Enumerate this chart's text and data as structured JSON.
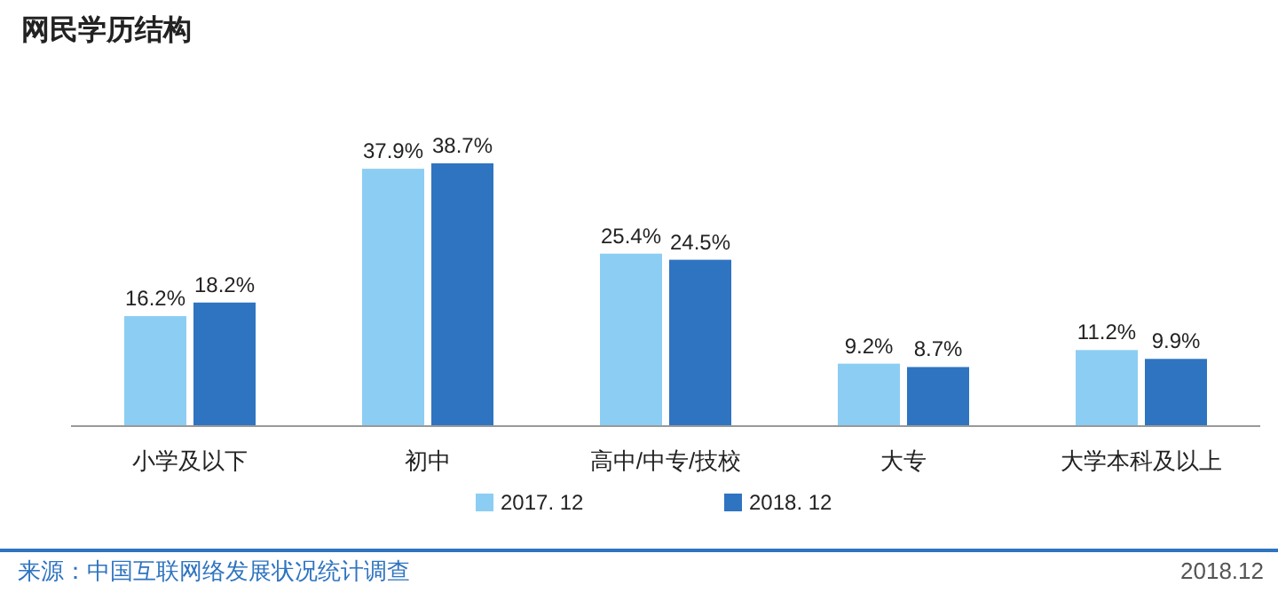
{
  "chart_data": {
    "type": "bar",
    "title": "网民学历结构",
    "categories": [
      "小学及以下",
      "初中",
      "高中/中专/技校",
      "大专",
      "大学本科及以上"
    ],
    "series": [
      {
        "name": "2017. 12",
        "color": "#8ccdf3",
        "values": [
          16.2,
          37.9,
          25.4,
          9.2,
          11.2
        ],
        "value_labels": [
          "16.2%",
          "37.9%",
          "25.4%",
          "9.2%",
          "11.2%"
        ]
      },
      {
        "name": "2018. 12",
        "color": "#2f74c0",
        "values": [
          18.2,
          38.7,
          24.5,
          8.7,
          9.9
        ],
        "value_labels": [
          "18.2%",
          "38.7%",
          "24.5%",
          "8.7%",
          "9.9%"
        ]
      }
    ],
    "legend": "bottom",
    "grid": false,
    "annotations": [
      "来源：中国互联网络发展状况统计调查",
      "2018.12"
    ]
  }
}
